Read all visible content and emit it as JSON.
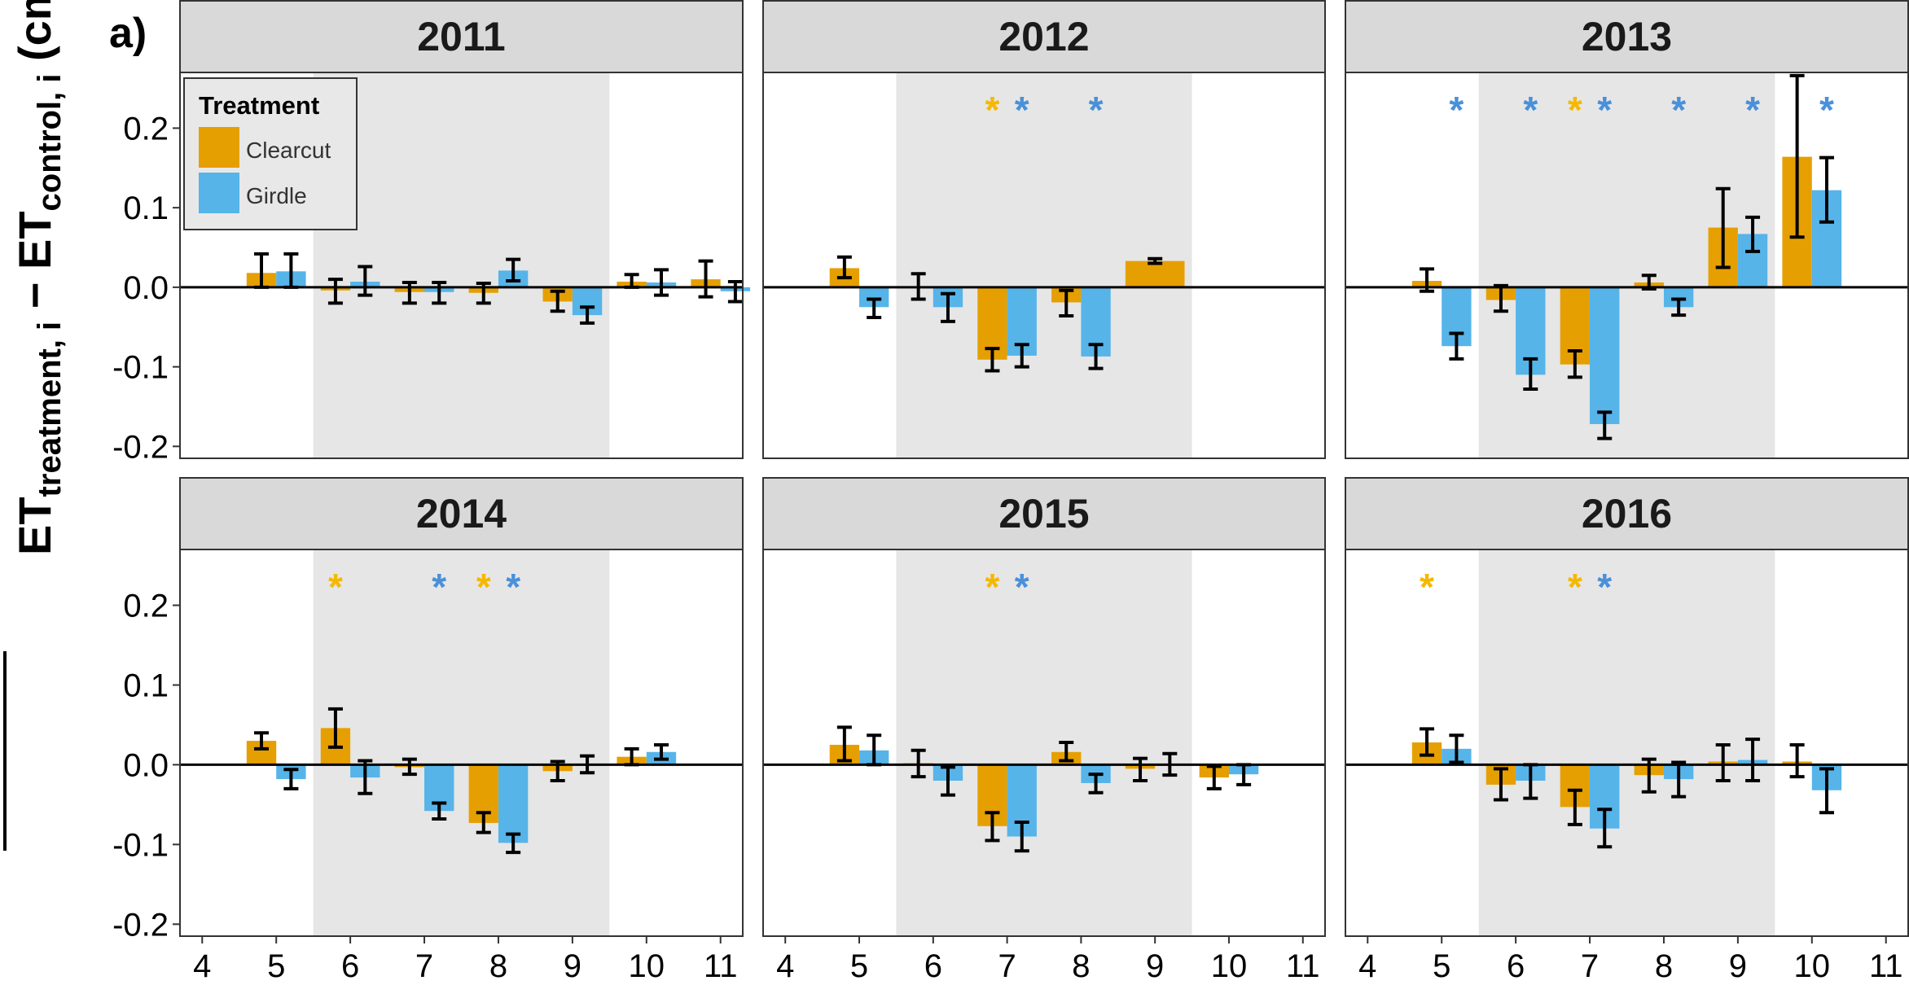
{
  "panel_label": "a)",
  "legend": {
    "title": "Treatment",
    "items": [
      {
        "label": "Clearcut",
        "color": "#E69F00"
      },
      {
        "label": "Girdle",
        "color": "#56B4E9"
      }
    ]
  },
  "y_axis_label": {
    "main1": "ET",
    "sub1": "treatment, i",
    "minus": " − ",
    "main2": "ET",
    "sub2": "control, i",
    "unit": " (cm)"
  },
  "chart_data": {
    "type": "bar",
    "x_ticks": [
      4,
      5,
      6,
      7,
      8,
      9,
      10,
      11
    ],
    "xlim": [
      3.7,
      11.3
    ],
    "y_ticks": [
      -0.2,
      -0.1,
      0.0,
      0.1,
      0.2
    ],
    "ylim": [
      -0.215,
      0.27
    ],
    "shaded_range": [
      5.5,
      9.5
    ],
    "series_names": [
      "Clearcut",
      "Girdle"
    ],
    "colors": {
      "Clearcut": "#E69F00",
      "Girdle": "#56B4E9",
      "Clearcut_sig": "#F5B800",
      "Girdle_sig": "#4A90D9"
    },
    "panels": [
      {
        "title": "2011",
        "bars": [
          {
            "month": 5,
            "series": "Clearcut",
            "value": 0.018,
            "err_low": 0.0,
            "err_high": 0.042
          },
          {
            "month": 5,
            "series": "Girdle",
            "value": 0.02,
            "err_low": 0.0,
            "err_high": 0.042
          },
          {
            "month": 6,
            "series": "Clearcut",
            "value": -0.004,
            "err_low": -0.02,
            "err_high": 0.01
          },
          {
            "month": 6,
            "series": "Girdle",
            "value": 0.007,
            "err_low": -0.01,
            "err_high": 0.026
          },
          {
            "month": 7,
            "series": "Clearcut",
            "value": -0.006,
            "err_low": -0.02,
            "err_high": 0.006
          },
          {
            "month": 7,
            "series": "Girdle",
            "value": -0.006,
            "err_low": -0.02,
            "err_high": 0.006
          },
          {
            "month": 8,
            "series": "Clearcut",
            "value": -0.007,
            "err_low": -0.02,
            "err_high": 0.005
          },
          {
            "month": 8,
            "series": "Girdle",
            "value": 0.021,
            "err_low": 0.008,
            "err_high": 0.035
          },
          {
            "month": 9,
            "series": "Clearcut",
            "value": -0.018,
            "err_low": -0.03,
            "err_high": -0.005
          },
          {
            "month": 9,
            "series": "Girdle",
            "value": -0.035,
            "err_low": -0.045,
            "err_high": -0.025
          },
          {
            "month": 10,
            "series": "Clearcut",
            "value": 0.007,
            "err_low": 0.0,
            "err_high": 0.016
          },
          {
            "month": 10,
            "series": "Girdle",
            "value": 0.006,
            "err_low": -0.01,
            "err_high": 0.022
          },
          {
            "month": 11,
            "series": "Clearcut",
            "value": 0.01,
            "err_low": -0.012,
            "err_high": 0.033
          },
          {
            "month": 11,
            "series": "Girdle",
            "value": -0.005,
            "err_low": -0.018,
            "err_high": 0.007
          }
        ],
        "stars": []
      },
      {
        "title": "2012",
        "bars": [
          {
            "month": 5,
            "series": "Clearcut",
            "value": 0.024,
            "err_low": 0.012,
            "err_high": 0.038
          },
          {
            "month": 5,
            "series": "Girdle",
            "value": -0.025,
            "err_low": -0.038,
            "err_high": -0.015
          },
          {
            "month": 6,
            "series": "Clearcut",
            "value": 0.0,
            "err_low": -0.015,
            "err_high": 0.017
          },
          {
            "month": 6,
            "series": "Girdle",
            "value": -0.025,
            "err_low": -0.043,
            "err_high": -0.008
          },
          {
            "month": 7,
            "series": "Clearcut",
            "value": -0.091,
            "err_low": -0.105,
            "err_high": -0.077
          },
          {
            "month": 7,
            "series": "Girdle",
            "value": -0.086,
            "err_low": -0.1,
            "err_high": -0.072
          },
          {
            "month": 8,
            "series": "Clearcut",
            "value": -0.019,
            "err_low": -0.036,
            "err_high": -0.004
          },
          {
            "month": 8,
            "series": "Girdle",
            "value": -0.087,
            "err_low": -0.102,
            "err_high": -0.072
          },
          {
            "month": 9,
            "series": "Clearcut",
            "value": 0.033,
            "err_low": 0.03,
            "err_high": 0.036,
            "span": "both"
          }
        ],
        "stars": [
          {
            "month": 7,
            "series": "Clearcut"
          },
          {
            "month": 7,
            "series": "Girdle"
          },
          {
            "month": 8,
            "series": "Girdle"
          }
        ]
      },
      {
        "title": "2013",
        "bars": [
          {
            "month": 5,
            "series": "Clearcut",
            "value": 0.008,
            "err_low": -0.005,
            "err_high": 0.023
          },
          {
            "month": 5,
            "series": "Girdle",
            "value": -0.074,
            "err_low": -0.09,
            "err_high": -0.058
          },
          {
            "month": 6,
            "series": "Clearcut",
            "value": -0.016,
            "err_low": -0.03,
            "err_high": 0.002
          },
          {
            "month": 6,
            "series": "Girdle",
            "value": -0.11,
            "err_low": -0.128,
            "err_high": -0.09
          },
          {
            "month": 7,
            "series": "Clearcut",
            "value": -0.097,
            "err_low": -0.113,
            "err_high": -0.08
          },
          {
            "month": 7,
            "series": "Girdle",
            "value": -0.172,
            "err_low": -0.19,
            "err_high": -0.157
          },
          {
            "month": 8,
            "series": "Clearcut",
            "value": 0.006,
            "err_low": -0.002,
            "err_high": 0.015
          },
          {
            "month": 8,
            "series": "Girdle",
            "value": -0.025,
            "err_low": -0.035,
            "err_high": -0.015
          },
          {
            "month": 9,
            "series": "Clearcut",
            "value": 0.075,
            "err_low": 0.025,
            "err_high": 0.124
          },
          {
            "month": 9,
            "series": "Girdle",
            "value": 0.067,
            "err_low": 0.045,
            "err_high": 0.088
          },
          {
            "month": 10,
            "series": "Clearcut",
            "value": 0.164,
            "err_low": 0.063,
            "err_high": 0.266
          },
          {
            "month": 10,
            "series": "Girdle",
            "value": 0.122,
            "err_low": 0.082,
            "err_high": 0.163
          }
        ],
        "stars": [
          {
            "month": 5,
            "series": "Girdle"
          },
          {
            "month": 6,
            "series": "Girdle"
          },
          {
            "month": 7,
            "series": "Clearcut"
          },
          {
            "month": 7,
            "series": "Girdle"
          },
          {
            "month": 8,
            "series": "Girdle"
          },
          {
            "month": 9,
            "series": "Girdle"
          },
          {
            "month": 10,
            "series": "Girdle"
          }
        ]
      },
      {
        "title": "2014",
        "bars": [
          {
            "month": 5,
            "series": "Clearcut",
            "value": 0.03,
            "err_low": 0.02,
            "err_high": 0.04
          },
          {
            "month": 5,
            "series": "Girdle",
            "value": -0.018,
            "err_low": -0.03,
            "err_high": -0.006
          },
          {
            "month": 6,
            "series": "Clearcut",
            "value": 0.046,
            "err_low": 0.022,
            "err_high": 0.07
          },
          {
            "month": 6,
            "series": "Girdle",
            "value": -0.016,
            "err_low": -0.036,
            "err_high": 0.005
          },
          {
            "month": 7,
            "series": "Clearcut",
            "value": -0.003,
            "err_low": -0.012,
            "err_high": 0.007
          },
          {
            "month": 7,
            "series": "Girdle",
            "value": -0.058,
            "err_low": -0.068,
            "err_high": -0.048
          },
          {
            "month": 8,
            "series": "Clearcut",
            "value": -0.073,
            "err_low": -0.085,
            "err_high": -0.06
          },
          {
            "month": 8,
            "series": "Girdle",
            "value": -0.098,
            "err_low": -0.11,
            "err_high": -0.087
          },
          {
            "month": 9,
            "series": "Clearcut",
            "value": -0.008,
            "err_low": -0.02,
            "err_high": 0.004
          },
          {
            "month": 9,
            "series": "Girdle",
            "value": 0.0,
            "err_low": -0.01,
            "err_high": 0.011
          },
          {
            "month": 10,
            "series": "Clearcut",
            "value": 0.01,
            "err_low": 0.0,
            "err_high": 0.02
          },
          {
            "month": 10,
            "series": "Girdle",
            "value": 0.016,
            "err_low": 0.007,
            "err_high": 0.025
          }
        ],
        "stars": [
          {
            "month": 6,
            "series": "Clearcut"
          },
          {
            "month": 7,
            "series": "Girdle"
          },
          {
            "month": 8,
            "series": "Clearcut"
          },
          {
            "month": 8,
            "series": "Girdle"
          }
        ]
      },
      {
        "title": "2015",
        "bars": [
          {
            "month": 5,
            "series": "Clearcut",
            "value": 0.025,
            "err_low": 0.005,
            "err_high": 0.047
          },
          {
            "month": 5,
            "series": "Girdle",
            "value": 0.018,
            "err_low": 0.0,
            "err_high": 0.037
          },
          {
            "month": 6,
            "series": "Clearcut",
            "value": 0.002,
            "err_low": -0.015,
            "err_high": 0.018
          },
          {
            "month": 6,
            "series": "Girdle",
            "value": -0.02,
            "err_low": -0.038,
            "err_high": -0.003
          },
          {
            "month": 7,
            "series": "Clearcut",
            "value": -0.077,
            "err_low": -0.095,
            "err_high": -0.06
          },
          {
            "month": 7,
            "series": "Girdle",
            "value": -0.09,
            "err_low": -0.108,
            "err_high": -0.072
          },
          {
            "month": 8,
            "series": "Clearcut",
            "value": 0.016,
            "err_low": 0.005,
            "err_high": 0.028
          },
          {
            "month": 8,
            "series": "Girdle",
            "value": -0.023,
            "err_low": -0.035,
            "err_high": -0.012
          },
          {
            "month": 9,
            "series": "Clearcut",
            "value": -0.005,
            "err_low": -0.02,
            "err_high": 0.008
          },
          {
            "month": 9,
            "series": "Girdle",
            "value": 0.0,
            "err_low": -0.013,
            "err_high": 0.014
          },
          {
            "month": 10,
            "series": "Clearcut",
            "value": -0.016,
            "err_low": -0.03,
            "err_high": -0.002
          },
          {
            "month": 10,
            "series": "Girdle",
            "value": -0.012,
            "err_low": -0.025,
            "err_high": 0.0
          }
        ],
        "stars": [
          {
            "month": 7,
            "series": "Clearcut"
          },
          {
            "month": 7,
            "series": "Girdle"
          }
        ]
      },
      {
        "title": "2016",
        "bars": [
          {
            "month": 5,
            "series": "Clearcut",
            "value": 0.028,
            "err_low": 0.012,
            "err_high": 0.045
          },
          {
            "month": 5,
            "series": "Girdle",
            "value": 0.02,
            "err_low": 0.003,
            "err_high": 0.037
          },
          {
            "month": 6,
            "series": "Clearcut",
            "value": -0.025,
            "err_low": -0.044,
            "err_high": -0.005
          },
          {
            "month": 6,
            "series": "Girdle",
            "value": -0.02,
            "err_low": -0.042,
            "err_high": 0.0
          },
          {
            "month": 7,
            "series": "Clearcut",
            "value": -0.053,
            "err_low": -0.075,
            "err_high": -0.032
          },
          {
            "month": 7,
            "series": "Girdle",
            "value": -0.08,
            "err_low": -0.103,
            "err_high": -0.056
          },
          {
            "month": 8,
            "series": "Clearcut",
            "value": -0.013,
            "err_low": -0.034,
            "err_high": 0.007
          },
          {
            "month": 8,
            "series": "Girdle",
            "value": -0.018,
            "err_low": -0.04,
            "err_high": 0.003
          },
          {
            "month": 9,
            "series": "Clearcut",
            "value": 0.004,
            "err_low": -0.02,
            "err_high": 0.025
          },
          {
            "month": 9,
            "series": "Girdle",
            "value": 0.006,
            "err_low": -0.02,
            "err_high": 0.032
          },
          {
            "month": 10,
            "series": "Clearcut",
            "value": 0.004,
            "err_low": -0.015,
            "err_high": 0.025
          },
          {
            "month": 10,
            "series": "Girdle",
            "value": -0.032,
            "err_low": -0.06,
            "err_high": -0.005
          }
        ],
        "stars": [
          {
            "month": 5,
            "series": "Clearcut"
          },
          {
            "month": 7,
            "series": "Clearcut"
          },
          {
            "month": 7,
            "series": "Girdle"
          }
        ]
      }
    ]
  }
}
